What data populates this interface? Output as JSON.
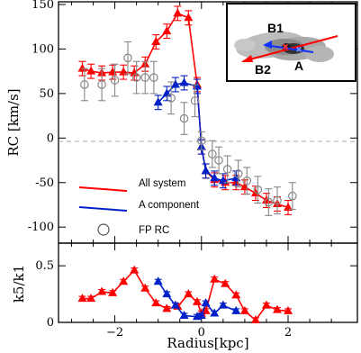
{
  "chart_data": [
    {
      "type": "line",
      "ylabel": "RC [km/s]",
      "xlim": [
        -3.3,
        3.6
      ],
      "ylim": [
        -118,
        153
      ],
      "yticks": [
        150,
        100,
        50,
        0,
        -50,
        -100
      ],
      "reference_line": {
        "y": 0,
        "style": "dashed",
        "color": "#aaaaaa"
      },
      "series": [
        {
          "name": "All system",
          "color": "#ff0000",
          "marker": "triangle",
          "x": [
            -2.75,
            -2.55,
            -2.3,
            -2.05,
            -1.8,
            -1.55,
            -1.3,
            -1.05,
            -0.8,
            -0.55,
            -0.3,
            -0.1,
            0.0,
            0.1,
            0.3,
            0.55,
            0.8,
            1.0,
            1.25,
            1.5,
            1.75,
            2.0
          ],
          "y": [
            78,
            75,
            73,
            74,
            74,
            73,
            83,
            108,
            120,
            140,
            135,
            60,
            -10,
            -37,
            -47,
            -50,
            -50,
            -55,
            -62,
            -70,
            -74,
            -78
          ],
          "yerr": [
            8,
            8,
            8,
            8,
            8,
            8,
            8,
            8,
            8,
            8,
            8,
            8,
            8,
            8,
            8,
            8,
            8,
            8,
            8,
            8,
            8,
            8
          ]
        },
        {
          "name": "A component",
          "color": "#0020c8",
          "marker": "triangle",
          "x": [
            -1.0,
            -0.8,
            -0.6,
            -0.4,
            -0.1,
            0.0,
            0.1,
            0.3,
            0.5,
            0.8
          ],
          "y": [
            40,
            50,
            60,
            62,
            58,
            -10,
            -37,
            -45,
            -48,
            -45
          ],
          "yerr": [
            8,
            8,
            8,
            8,
            8,
            8,
            8,
            8,
            8,
            8
          ]
        },
        {
          "name": "FP RC",
          "color": "#888888",
          "marker": "open-circle",
          "x": [
            -2.7,
            -2.3,
            -2.0,
            -1.7,
            -1.5,
            -1.3,
            -1.1,
            -0.7,
            -0.4,
            -0.15,
            0.0,
            0.25,
            0.4,
            0.6,
            0.85,
            1.05,
            1.3,
            1.55,
            1.75,
            2.1
          ],
          "y": [
            60,
            60,
            65,
            90,
            68,
            68,
            68,
            45,
            22,
            42,
            -3,
            -18,
            -25,
            -35,
            -40,
            -48,
            -58,
            -72,
            -70,
            -65
          ],
          "yerr": [
            18,
            18,
            18,
            18,
            18,
            18,
            18,
            18,
            18,
            18,
            10,
            15,
            15,
            15,
            15,
            15,
            15,
            15,
            15,
            15
          ]
        }
      ],
      "legend_position": "lower-left",
      "inset": {
        "labels": [
          "B1",
          "B2",
          "A"
        ]
      }
    },
    {
      "type": "line",
      "xlabel": "Radius[kpc]",
      "ylabel": "k5/k1",
      "xlim": [
        -3.3,
        3.6
      ],
      "ylim": [
        0,
        0.7
      ],
      "xticks": [
        -2,
        0,
        2
      ],
      "yticks": [
        0.5,
        0
      ],
      "series": [
        {
          "name": "All system",
          "color": "#ff0000",
          "marker": "triangle",
          "x": [
            -2.75,
            -2.55,
            -2.3,
            -2.05,
            -1.8,
            -1.55,
            -1.3,
            -1.05,
            -0.8,
            -0.55,
            -0.3,
            -0.1,
            0.0,
            0.1,
            0.3,
            0.55,
            0.8,
            1.0,
            1.25,
            1.5,
            1.75,
            2.0
          ],
          "y": [
            0.21,
            0.21,
            0.27,
            0.26,
            0.36,
            0.46,
            0.3,
            0.17,
            0.12,
            0.14,
            0.25,
            0.18,
            0.08,
            0.1,
            0.38,
            0.34,
            0.24,
            0.1,
            0.02,
            0.15,
            0.11,
            0.1
          ],
          "yerr": [
            0.02,
            0.02,
            0.02,
            0.02,
            0.02,
            0.02,
            0.02,
            0.02,
            0.02,
            0.02,
            0.02,
            0.02,
            0.02,
            0.02,
            0.02,
            0.02,
            0.02,
            0.02,
            0.02,
            0.02,
            0.02,
            0.02
          ]
        },
        {
          "name": "A component",
          "color": "#0020c8",
          "marker": "triangle",
          "x": [
            -1.0,
            -0.8,
            -0.6,
            -0.4,
            -0.1,
            0.0,
            0.1,
            0.3,
            0.5,
            0.8
          ],
          "y": [
            0.36,
            0.25,
            0.15,
            0.06,
            0.05,
            0.06,
            0.17,
            0.08,
            0.15,
            0.1
          ],
          "yerr": [
            0.02,
            0.02,
            0.02,
            0.02,
            0.02,
            0.02,
            0.02,
            0.02,
            0.02,
            0.02
          ]
        }
      ]
    }
  ]
}
